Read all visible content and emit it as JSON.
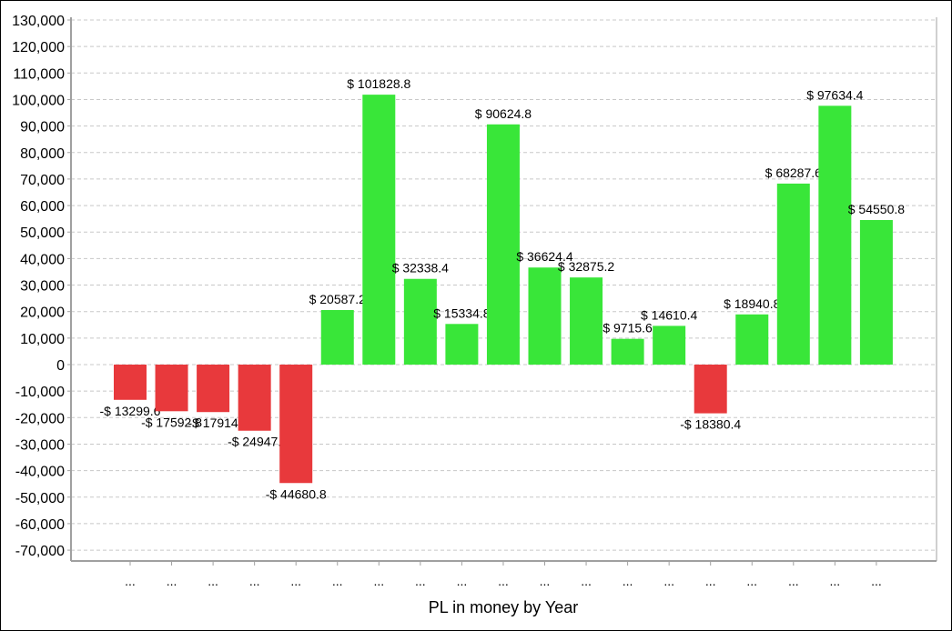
{
  "chart_data": {
    "type": "bar",
    "title": "",
    "xlabel": "PL in money by Year",
    "ylabel": "",
    "ylim": [
      -74000,
      130000
    ],
    "yticks": [
      130000,
      120000,
      110000,
      100000,
      90000,
      80000,
      70000,
      60000,
      50000,
      40000,
      30000,
      20000,
      10000,
      0,
      -10000,
      -20000,
      -30000,
      -40000,
      -50000,
      -60000,
      -70000
    ],
    "ytick_labels": [
      "130,000",
      "120,000",
      "110,000",
      "100,000",
      "90,000",
      "80,000",
      "70,000",
      "60,000",
      "50,000",
      "40,000",
      "30,000",
      "20,000",
      "10,000",
      "0",
      "-10,000",
      "-20,000",
      "-30,000",
      "-40,000",
      "-50,000",
      "-60,000",
      "-70,000"
    ],
    "grid": true,
    "categories": [
      "...",
      "...",
      "...",
      "...",
      "...",
      "...",
      "...",
      "...",
      "...",
      "...",
      "...",
      "...",
      "...",
      "...",
      "...",
      "...",
      "...",
      "...",
      "..."
    ],
    "values": [
      -13299.6,
      -17592.8,
      -17914,
      -24947,
      -44680.8,
      20587.2,
      101828.8,
      32338.4,
      15334.8,
      90624.8,
      36624.4,
      32875.2,
      9715.6,
      14610.4,
      -18380.4,
      18940.8,
      68287.6,
      97634.4,
      54550.8
    ],
    "labels": [
      "-$ 13299.6",
      "-$ 17592.8",
      "-$ 17914",
      "-$ 24947.",
      "-$ 44680.8",
      "$ 20587.2",
      "$ 101828.8",
      "$ 32338.4",
      "$ 15334.8",
      "$ 90624.8",
      "$ 36624.4",
      "$ 32875.2",
      "$ 9715.6",
      "$ 14610.4",
      "-$ 18380.4",
      "$ 18940.8",
      "$ 68287.6",
      "$ 97634.4",
      "$ 54550.8"
    ],
    "colors": {
      "positive": "#39e639",
      "negative": "#e8393c",
      "grid": "#c8c8c8",
      "axis": "#a0a0a0"
    }
  }
}
